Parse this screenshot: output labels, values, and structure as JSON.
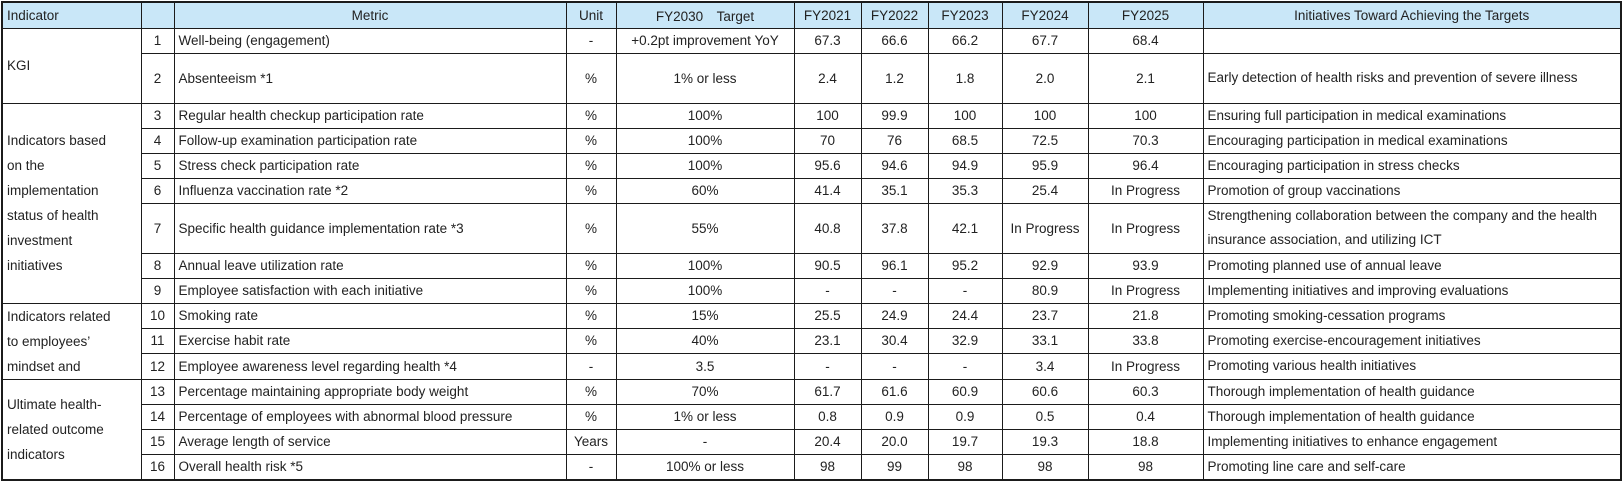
{
  "colors": {
    "header_bg": "#c9e7f8",
    "border": "#1b1b1b",
    "text": "#222222",
    "background": "#ffffff"
  },
  "table": {
    "headers": {
      "indicator": "Indicator",
      "num": "",
      "metric": "Metric",
      "unit": "Unit",
      "fy2030_target": "FY2030　Target",
      "years": [
        "FY2021",
        "FY2022",
        "FY2023",
        "FY2024",
        "FY2025"
      ],
      "initiatives": "Initiatives Toward Achieving the Targets"
    },
    "groups": [
      {
        "label": "KGI",
        "label_lines": [
          "KGI"
        ],
        "rows": [
          {
            "num": "1",
            "metric": "Well-being (engagement)",
            "unit": "-",
            "target": "+0.2pt improvement YoY",
            "values": [
              "67.3",
              "66.6",
              "66.2",
              "67.7",
              "68.4"
            ],
            "initiative": "",
            "tall": false
          },
          {
            "num": "2",
            "metric": "Absenteeism *1",
            "unit": "%",
            "target": "1% or less",
            "values": [
              "2.4",
              "1.2",
              "1.8",
              "2.0",
              "2.1"
            ],
            "initiative": "Early detection of health risks and prevention of severe illness",
            "tall": true
          }
        ]
      },
      {
        "label": "Indicators based on the implementation status of health investment initiatives",
        "label_lines": [
          "Indicators based",
          "on the",
          "implementation",
          "status of health",
          "investment",
          "initiatives"
        ],
        "rows": [
          {
            "num": "3",
            "metric": "Regular health checkup participation rate",
            "unit": "%",
            "target": "100%",
            "values": [
              "100",
              "99.9",
              "100",
              "100",
              "100"
            ],
            "initiative": "Ensuring full participation in medical examinations",
            "tall": false
          },
          {
            "num": "4",
            "metric": "Follow-up examination participation rate",
            "unit": "%",
            "target": "100%",
            "values": [
              "70",
              "76",
              "68.5",
              "72.5",
              "70.3"
            ],
            "initiative": "Encouraging participation in medical examinations",
            "tall": false
          },
          {
            "num": "5",
            "metric": "Stress check participation rate",
            "unit": "%",
            "target": "100%",
            "values": [
              "95.6",
              "94.6",
              "94.9",
              "95.9",
              "96.4"
            ],
            "initiative": "Encouraging participation in stress checks",
            "tall": false
          },
          {
            "num": "6",
            "metric": "Influenza vaccination rate *2",
            "unit": "%",
            "target": "60%",
            "values": [
              "41.4",
              "35.1",
              "35.3",
              "25.4",
              "In Progress"
            ],
            "initiative": "Promotion of group vaccinations",
            "tall": false
          },
          {
            "num": "7",
            "metric": "Specific health guidance implementation rate *3",
            "unit": "%",
            "target": "55%",
            "values": [
              "40.8",
              "37.8",
              "42.1",
              "In Progress",
              "In Progress"
            ],
            "initiative": "Strengthening collaboration between the company and the health insurance association, and utilizing ICT",
            "tall": true
          },
          {
            "num": "8",
            "metric": "Annual leave utilization rate",
            "unit": "%",
            "target": "100%",
            "values": [
              "90.5",
              "96.1",
              "95.2",
              "92.9",
              "93.9"
            ],
            "initiative": "Promoting planned use of annual leave",
            "tall": false
          },
          {
            "num": "9",
            "metric": "Employee satisfaction with each initiative",
            "unit": "%",
            "target": "100%",
            "values": [
              "-",
              "-",
              "-",
              "80.9",
              "In Progress"
            ],
            "initiative": "Implementing initiatives and improving evaluations",
            "tall": false
          }
        ]
      },
      {
        "label": "Indicators related to employees’ mindset and",
        "label_lines": [
          "Indicators related",
          "to employees’",
          "mindset and"
        ],
        "rows": [
          {
            "num": "10",
            "metric": "Smoking rate",
            "unit": "%",
            "target": "15%",
            "values": [
              "25.5",
              "24.9",
              "24.4",
              "23.7",
              "21.8"
            ],
            "initiative": "Promoting smoking-cessation programs",
            "tall": false
          },
          {
            "num": "11",
            "metric": "Exercise habit rate",
            "unit": "%",
            "target": "40%",
            "values": [
              "23.1",
              "30.4",
              "32.9",
              "33.1",
              "33.8"
            ],
            "initiative": "Promoting exercise-encouragement initiatives",
            "tall": false
          },
          {
            "num": "12",
            "metric": "Employee awareness level regarding health *4",
            "unit": "-",
            "target": "3.5",
            "values": [
              "-",
              "-",
              "-",
              "3.4",
              "In Progress"
            ],
            "initiative": "Promoting various health initiatives",
            "tall": false
          }
        ]
      },
      {
        "label": "Ultimate health-related outcome indicators",
        "label_lines": [
          "Ultimate health-",
          "related outcome",
          "indicators"
        ],
        "rows": [
          {
            "num": "13",
            "metric": "Percentage maintaining appropriate body weight",
            "unit": "%",
            "target": "70%",
            "values": [
              "61.7",
              "61.6",
              "60.9",
              "60.6",
              "60.3"
            ],
            "initiative": "Thorough implementation of health guidance",
            "tall": false
          },
          {
            "num": "14",
            "metric": "Percentage of employees with abnormal blood pressure",
            "unit": "%",
            "target": "1% or less",
            "values": [
              "0.8",
              "0.9",
              "0.9",
              "0.5",
              "0.4"
            ],
            "initiative": "Thorough implementation of health guidance",
            "tall": false
          },
          {
            "num": "15",
            "metric": "Average length of service",
            "unit": "Years",
            "target": "-",
            "values": [
              "20.4",
              "20.0",
              "19.7",
              "19.3",
              "18.8"
            ],
            "initiative": "Implementing initiatives to enhance engagement",
            "tall": false
          },
          {
            "num": "16",
            "metric": "Overall health risk *5",
            "unit": "-",
            "target": "100% or less",
            "values": [
              "98",
              "99",
              "98",
              "98",
              "98"
            ],
            "initiative": "Promoting line care and self-care",
            "tall": false
          }
        ]
      }
    ]
  }
}
